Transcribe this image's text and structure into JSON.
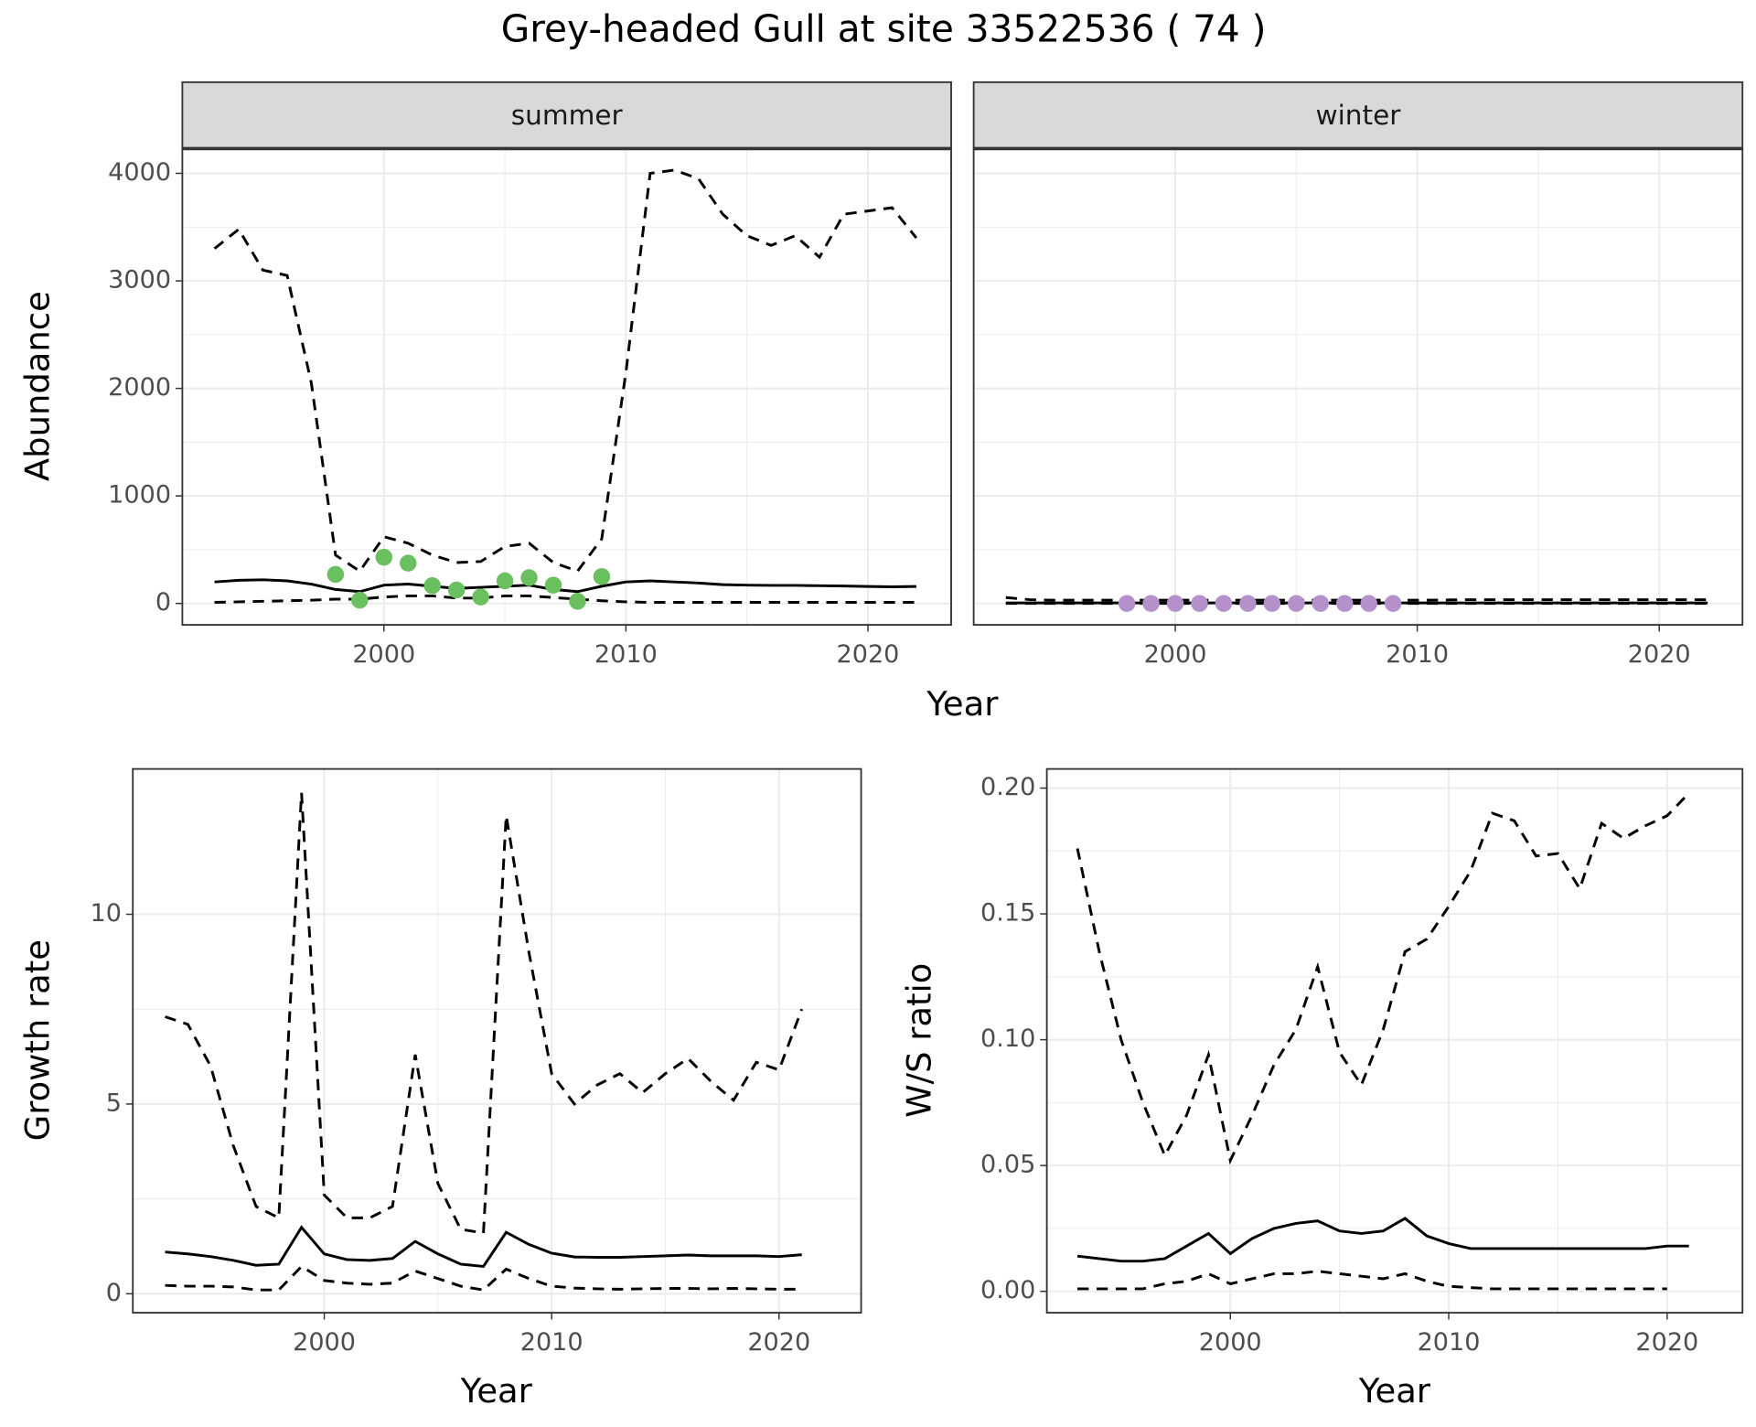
{
  "title": "Grey-headed Gull at site 33522536 ( 74 )",
  "shared_x_label": "Year",
  "shared_y_label": "Abundance",
  "chart_data": [
    {
      "type": "line",
      "facet": "summer",
      "xlim": [
        1991.67,
        2023.44
      ],
      "ylim": [
        -199,
        4230
      ],
      "xticks": [
        2000,
        2010,
        2020
      ],
      "yticks": [
        0,
        1000,
        2000,
        3000,
        4000
      ],
      "show_ytick_labels": true,
      "grid": true,
      "series": [
        {
          "color": "#000000",
          "dashed": true,
          "x": [
            1993,
            1994,
            1995,
            1996,
            1997,
            1998,
            1999,
            2000,
            2001,
            2002,
            2003,
            2004,
            2005,
            2006,
            2007,
            2008,
            2009,
            2010,
            2011,
            2012,
            2013,
            2014,
            2015,
            2016,
            2017,
            2018,
            2019,
            2020,
            2021,
            2022
          ],
          "values": [
            3300,
            3480,
            3100,
            3050,
            2050,
            450,
            300,
            620,
            560,
            450,
            380,
            390,
            530,
            560,
            380,
            300,
            600,
            2150,
            4000,
            4030,
            3950,
            3620,
            3420,
            3330,
            3420,
            3220,
            3620,
            3650,
            3680,
            3400
          ]
        },
        {
          "color": "#000000",
          "dashed": false,
          "x": [
            1993,
            1994,
            1995,
            1996,
            1997,
            1998,
            1999,
            2000,
            2001,
            2002,
            2003,
            2004,
            2005,
            2006,
            2007,
            2008,
            2009,
            2010,
            2011,
            2012,
            2013,
            2014,
            2015,
            2016,
            2017,
            2018,
            2019,
            2020,
            2021,
            2022
          ],
          "values": [
            200,
            215,
            220,
            210,
            180,
            130,
            110,
            170,
            180,
            160,
            140,
            150,
            160,
            170,
            130,
            110,
            160,
            200,
            210,
            200,
            190,
            175,
            170,
            168,
            168,
            165,
            162,
            158,
            155,
            158
          ]
        },
        {
          "color": "#000000",
          "dashed": true,
          "x": [
            1993,
            1994,
            1995,
            1996,
            1997,
            1998,
            1999,
            2000,
            2001,
            2002,
            2003,
            2004,
            2005,
            2006,
            2007,
            2008,
            2009,
            2010,
            2011,
            2012,
            2013,
            2014,
            2015,
            2016,
            2017,
            2018,
            2019,
            2020,
            2021,
            2022
          ],
          "values": [
            10,
            15,
            20,
            25,
            30,
            40,
            40,
            60,
            70,
            70,
            50,
            50,
            70,
            70,
            55,
            40,
            25,
            15,
            10,
            10,
            10,
            10,
            10,
            10,
            10,
            10,
            10,
            10,
            10,
            10
          ]
        },
        {
          "type": "points",
          "color": "#6abf5e",
          "x": [
            1998,
            1999,
            2000,
            2001,
            2002,
            2003,
            2004,
            2005,
            2006,
            2007,
            2008,
            2009
          ],
          "values": [
            270,
            30,
            430,
            375,
            165,
            125,
            60,
            210,
            240,
            170,
            20,
            250
          ]
        }
      ]
    },
    {
      "type": "line",
      "facet": "winter",
      "xlim": [
        1991.67,
        2023.44
      ],
      "ylim": [
        -199,
        4230
      ],
      "xticks": [
        2000,
        2010,
        2020
      ],
      "yticks": [
        0,
        1000,
        2000,
        3000,
        4000
      ],
      "show_ytick_labels": false,
      "grid": true,
      "series": [
        {
          "color": "#000000",
          "dashed": true,
          "x": [
            1993,
            1994,
            1995,
            1996,
            1997,
            1998,
            1999,
            2000,
            2001,
            2002,
            2003,
            2004,
            2005,
            2006,
            2007,
            2008,
            2009,
            2010,
            2011,
            2012,
            2013,
            2014,
            2015,
            2016,
            2017,
            2018,
            2019,
            2020,
            2021,
            2022
          ],
          "values": [
            55,
            35,
            30,
            30,
            30,
            30,
            30,
            30,
            30,
            30,
            30,
            30,
            30,
            30,
            30,
            30,
            30,
            30,
            32,
            35,
            35,
            35,
            35,
            35,
            35,
            35,
            35,
            35,
            35,
            35
          ]
        },
        {
          "color": "#000000",
          "dashed": false,
          "x": [
            1993,
            1994,
            1995,
            1996,
            1997,
            1998,
            1999,
            2000,
            2001,
            2002,
            2003,
            2004,
            2005,
            2006,
            2007,
            2008,
            2009,
            2010,
            2011,
            2012,
            2013,
            2014,
            2015,
            2016,
            2017,
            2018,
            2019,
            2020,
            2021,
            2022
          ],
          "values": [
            5,
            5,
            5,
            5,
            5,
            5,
            5,
            5,
            5,
            5,
            5,
            5,
            5,
            5,
            5,
            5,
            5,
            5,
            5,
            5,
            5,
            5,
            5,
            5,
            5,
            5,
            5,
            5,
            5,
            5
          ]
        },
        {
          "color": "#000000",
          "dashed": true,
          "x": [
            1993,
            1994,
            1995,
            1996,
            1997,
            1998,
            1999,
            2000,
            2001,
            2002,
            2003,
            2004,
            2005,
            2006,
            2007,
            2008,
            2009,
            2010,
            2011,
            2012,
            2013,
            2014,
            2015,
            2016,
            2017,
            2018,
            2019,
            2020,
            2021,
            2022
          ],
          "values": [
            0,
            0,
            0,
            0,
            0,
            0,
            0,
            0,
            0,
            0,
            0,
            0,
            0,
            0,
            0,
            0,
            0,
            0,
            0,
            0,
            0,
            0,
            0,
            0,
            0,
            0,
            0,
            0,
            0,
            0
          ]
        },
        {
          "type": "points",
          "color": "#b591cc",
          "x": [
            1998,
            1999,
            2000,
            2001,
            2002,
            2003,
            2004,
            2005,
            2006,
            2007,
            2008,
            2009
          ],
          "values": [
            0,
            0,
            0,
            0,
            0,
            0,
            0,
            0,
            0,
            0,
            0,
            0
          ]
        }
      ]
    },
    {
      "type": "line",
      "x_label": "Year",
      "y_label": "Growth rate",
      "xlim": [
        1991.58,
        2023.61
      ],
      "ylim": [
        -0.5,
        13.83
      ],
      "xticks": [
        2000,
        2010,
        2020
      ],
      "yticks": [
        0,
        5,
        10
      ],
      "show_ytick_labels": true,
      "grid": true,
      "series": [
        {
          "color": "#000000",
          "dashed": true,
          "x": [
            1993,
            1994,
            1995,
            1996,
            1997,
            1998,
            1999,
            2000,
            2001,
            2002,
            2003,
            2004,
            2005,
            2006,
            2007,
            2008,
            2009,
            2010,
            2011,
            2012,
            2013,
            2014,
            2015,
            2016,
            2017,
            2018,
            2019,
            2020,
            2021
          ],
          "values": [
            7.3,
            7.1,
            6.0,
            3.9,
            2.3,
            2.0,
            13.2,
            2.6,
            2.0,
            2.0,
            2.3,
            6.3,
            2.9,
            1.7,
            1.6,
            12.6,
            9.0,
            5.8,
            5.0,
            5.5,
            5.8,
            5.3,
            5.8,
            6.2,
            5.6,
            5.1,
            6.1,
            5.9,
            7.5
          ]
        },
        {
          "color": "#000000",
          "dashed": false,
          "x": [
            1993,
            1994,
            1995,
            1996,
            1997,
            1998,
            1999,
            2000,
            2001,
            2002,
            2003,
            2004,
            2005,
            2006,
            2007,
            2008,
            2009,
            2010,
            2011,
            2012,
            2013,
            2014,
            2015,
            2016,
            2017,
            2018,
            2019,
            2020,
            2021
          ],
          "values": [
            1.1,
            1.05,
            0.98,
            0.88,
            0.75,
            0.78,
            1.75,
            1.05,
            0.9,
            0.88,
            0.93,
            1.38,
            1.05,
            0.78,
            0.72,
            1.62,
            1.3,
            1.07,
            0.97,
            0.96,
            0.96,
            0.98,
            1.0,
            1.02,
            1.0,
            1.0,
            1.0,
            0.98,
            1.03
          ]
        },
        {
          "color": "#000000",
          "dashed": true,
          "x": [
            1993,
            1994,
            1995,
            1996,
            1997,
            1998,
            1999,
            2000,
            2001,
            2002,
            2003,
            2004,
            2005,
            2006,
            2007,
            2008,
            2009,
            2010,
            2011,
            2012,
            2013,
            2014,
            2015,
            2016,
            2017,
            2018,
            2019,
            2020,
            2021
          ],
          "values": [
            0.22,
            0.2,
            0.2,
            0.18,
            0.1,
            0.1,
            0.72,
            0.35,
            0.28,
            0.25,
            0.28,
            0.6,
            0.4,
            0.2,
            0.1,
            0.65,
            0.4,
            0.2,
            0.15,
            0.13,
            0.12,
            0.13,
            0.14,
            0.14,
            0.13,
            0.14,
            0.13,
            0.12,
            0.12
          ]
        }
      ]
    },
    {
      "type": "line",
      "x_label": "Year",
      "y_label": "W/S ratio",
      "xlim": [
        1991.6,
        2023.45
      ],
      "ylim": [
        -0.0085,
        0.2076
      ],
      "xticks": [
        2000,
        2010,
        2020
      ],
      "yticks": [
        {
          "value": 0,
          "label": "0.00"
        },
        {
          "value": 0.05,
          "label": "0.05"
        },
        {
          "value": 0.1,
          "label": "0.10"
        },
        {
          "value": 0.15,
          "label": "0.15"
        },
        {
          "value": 0.2,
          "label": "0.20"
        }
      ],
      "show_ytick_labels": true,
      "grid": true,
      "series": [
        {
          "color": "#000000",
          "dashed": true,
          "x": [
            1993,
            1994,
            1995,
            1996,
            1997,
            1998,
            1999,
            2000,
            2001,
            2002,
            2003,
            2004,
            2005,
            2006,
            2007,
            2008,
            2009,
            2010,
            2011,
            2012,
            2013,
            2014,
            2015,
            2016,
            2017,
            2018,
            2019,
            2020,
            2021
          ],
          "values": [
            0.176,
            0.135,
            0.1,
            0.075,
            0.054,
            0.07,
            0.094,
            0.052,
            0.07,
            0.09,
            0.104,
            0.129,
            0.095,
            0.082,
            0.104,
            0.135,
            0.14,
            0.153,
            0.167,
            0.19,
            0.187,
            0.173,
            0.174,
            0.16,
            0.186,
            0.18,
            0.185,
            0.189,
            0.198
          ]
        },
        {
          "color": "#000000",
          "dashed": false,
          "x": [
            1993,
            1994,
            1995,
            1996,
            1997,
            1998,
            1999,
            2000,
            2001,
            2002,
            2003,
            2004,
            2005,
            2006,
            2007,
            2008,
            2009,
            2010,
            2011,
            2012,
            2013,
            2014,
            2015,
            2016,
            2017,
            2018,
            2019,
            2020,
            2021
          ],
          "values": [
            0.014,
            0.013,
            0.012,
            0.012,
            0.013,
            0.018,
            0.023,
            0.015,
            0.021,
            0.025,
            0.027,
            0.028,
            0.024,
            0.023,
            0.024,
            0.029,
            0.022,
            0.019,
            0.017,
            0.017,
            0.017,
            0.017,
            0.017,
            0.017,
            0.017,
            0.017,
            0.017,
            0.018,
            0.018
          ]
        },
        {
          "color": "#000000",
          "dashed": true,
          "x": [
            1993,
            1994,
            1995,
            1996,
            1997,
            1998,
            1999,
            2000,
            2001,
            2002,
            2003,
            2004,
            2005,
            2006,
            2007,
            2008,
            2009,
            2010,
            2011,
            2012,
            2013,
            2014,
            2015,
            2016,
            2017,
            2018,
            2019,
            2020
          ],
          "values": [
            0.001,
            0.001,
            0.001,
            0.001,
            0.003,
            0.004,
            0.007,
            0.003,
            0.005,
            0.007,
            0.007,
            0.008,
            0.007,
            0.006,
            0.005,
            0.007,
            0.004,
            0.002,
            0.0015,
            0.001,
            0.001,
            0.001,
            0.001,
            0.001,
            0.001,
            0.001,
            0.001,
            0.001
          ]
        }
      ]
    }
  ]
}
